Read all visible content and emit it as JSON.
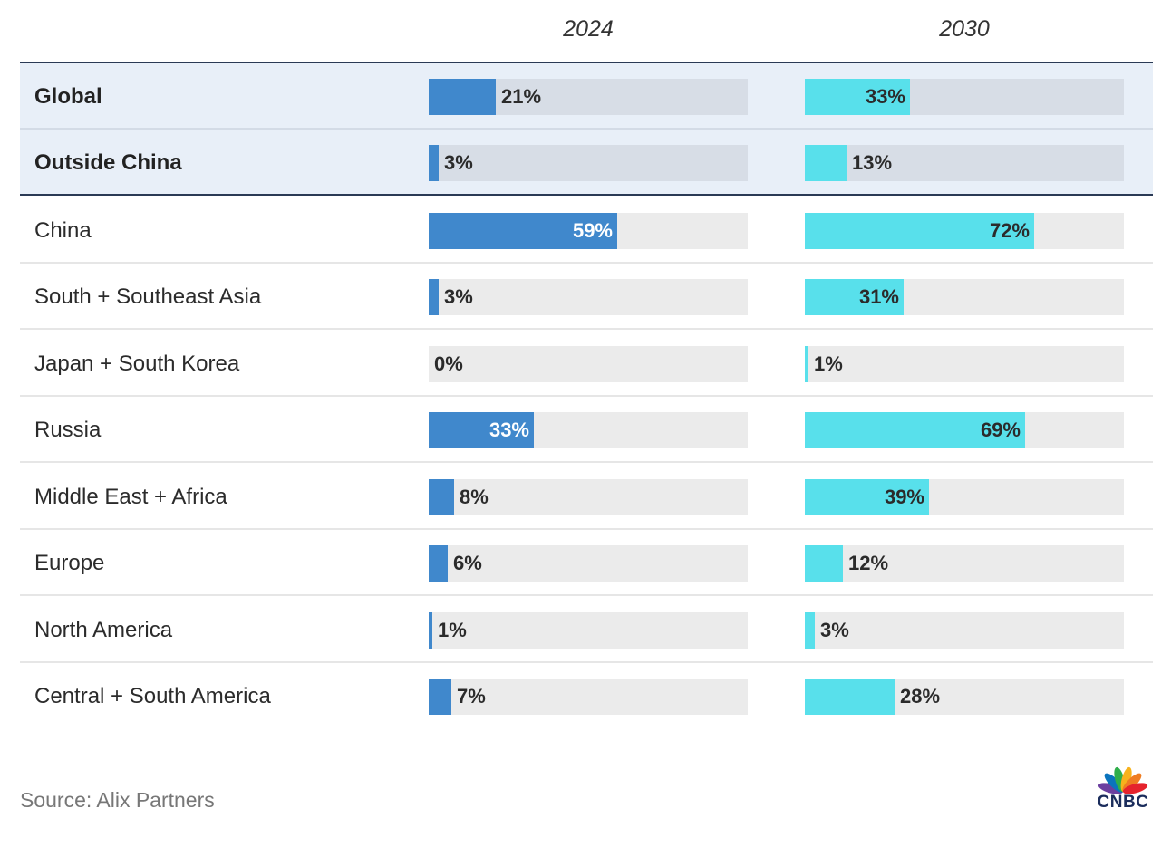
{
  "chart_data": {
    "type": "bar",
    "columns": [
      "2024",
      "2030"
    ],
    "colors": {
      "2024": "#4088cc",
      "2030": "#58e0eb"
    },
    "value_unit": "%",
    "xlim": [
      0,
      100
    ],
    "rows": [
      {
        "label": "Global",
        "highlight": true,
        "values": [
          21,
          33
        ]
      },
      {
        "label": "Outside China",
        "highlight": true,
        "values": [
          3,
          13
        ]
      },
      {
        "label": "China",
        "highlight": false,
        "values": [
          59,
          72
        ]
      },
      {
        "label": "South + Southeast Asia",
        "highlight": false,
        "values": [
          3,
          31
        ]
      },
      {
        "label": "Japan + South Korea",
        "highlight": false,
        "values": [
          0,
          1
        ]
      },
      {
        "label": "Russia",
        "highlight": false,
        "values": [
          33,
          69
        ]
      },
      {
        "label": "Middle East + Africa",
        "highlight": false,
        "values": [
          8,
          39
        ]
      },
      {
        "label": "Europe",
        "highlight": false,
        "values": [
          6,
          12
        ]
      },
      {
        "label": "North America",
        "highlight": false,
        "values": [
          1,
          3
        ]
      },
      {
        "label": "Central + South America",
        "highlight": false,
        "values": [
          7,
          28
        ]
      }
    ]
  },
  "footer": {
    "source": "Source: Alix Partners",
    "logo_text": "CNBC",
    "logo_icon": "cnbc-peacock-icon"
  }
}
